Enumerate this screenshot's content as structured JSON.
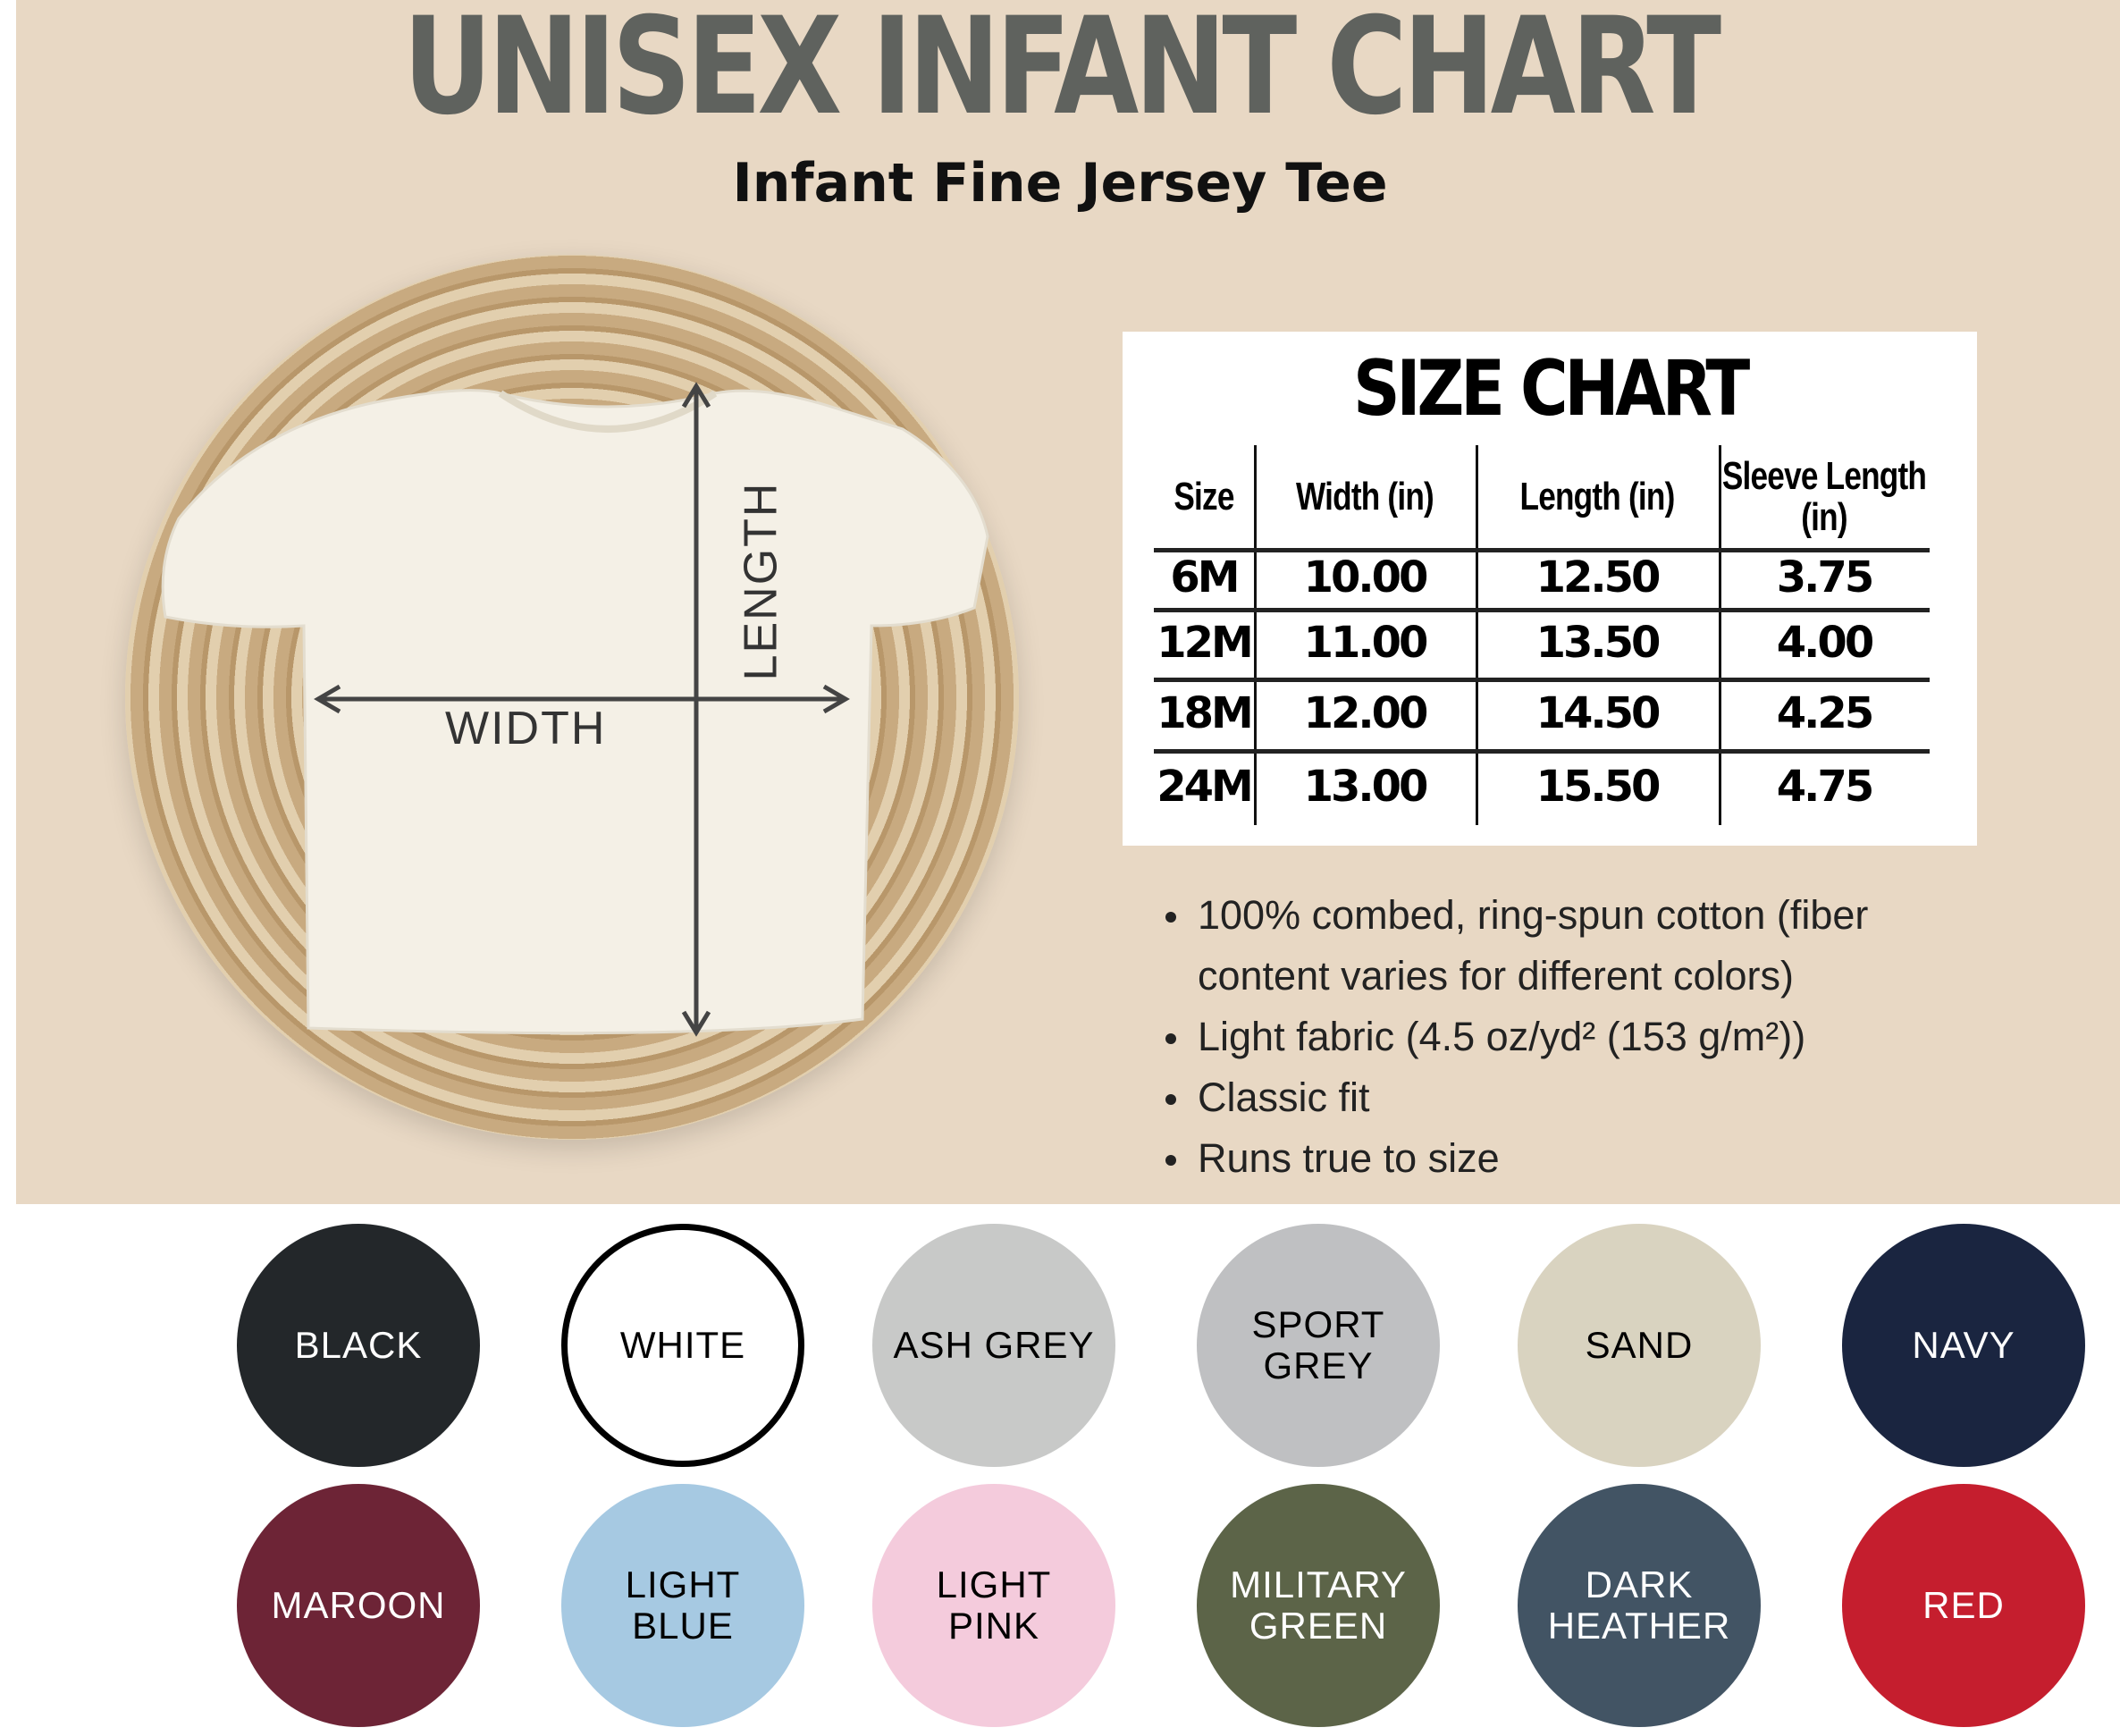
{
  "header": {
    "title": "UNISEX INFANT CHART",
    "subtitle": "Infant Fine Jersey Tee"
  },
  "diagram": {
    "width_label": "WIDTH",
    "length_label": "LENGTH"
  },
  "size_chart": {
    "title": "SIZE CHART",
    "columns": [
      "Size",
      "Width (in)",
      "Length (in)",
      "Sleeve Length (in)"
    ],
    "rows": [
      [
        "6M",
        "10.00",
        "12.50",
        "3.75"
      ],
      [
        "12M",
        "11.00",
        "13.50",
        "4.00"
      ],
      [
        "18M",
        "12.00",
        "14.50",
        "4.25"
      ],
      [
        "24M",
        "13.00",
        "15.50",
        "4.75"
      ]
    ]
  },
  "features": [
    "100% combed, ring-spun cotton (fiber content varies for different colors)",
    "Light fabric (4.5 oz/yd² (153 g/m²))",
    "Classic fit",
    "Runs true to size"
  ],
  "colors": [
    {
      "name": "BLACK",
      "hex": "#23272a",
      "text": "#ffffff"
    },
    {
      "name": "WHITE",
      "hex": "#ffffff",
      "text": "#000000"
    },
    {
      "name": "ASH GREY",
      "hex": "#c8c9c8",
      "text": "#000000"
    },
    {
      "name": "SPORT GREY",
      "hex": "#bfc0c2",
      "text": "#000000"
    },
    {
      "name": "SAND",
      "hex": "#d9d3c0",
      "text": "#000000"
    },
    {
      "name": "NAVY",
      "hex": "#1a2540",
      "text": "#ffffff"
    },
    {
      "name": "MAROON",
      "hex": "#6d2436",
      "text": "#ffffff"
    },
    {
      "name": "LIGHT BLUE",
      "hex": "#a6c9e2",
      "text": "#000000"
    },
    {
      "name": "LIGHT PINK",
      "hex": "#f4cbdc",
      "text": "#000000"
    },
    {
      "name": "MILITARY GREEN",
      "hex": "#5c6448",
      "text": "#ffffff"
    },
    {
      "name": "DARK HEATHER",
      "hex": "#425464",
      "text": "#ffffff"
    },
    {
      "name": "RED",
      "hex": "#c51e2e",
      "text": "#ffffff"
    }
  ]
}
